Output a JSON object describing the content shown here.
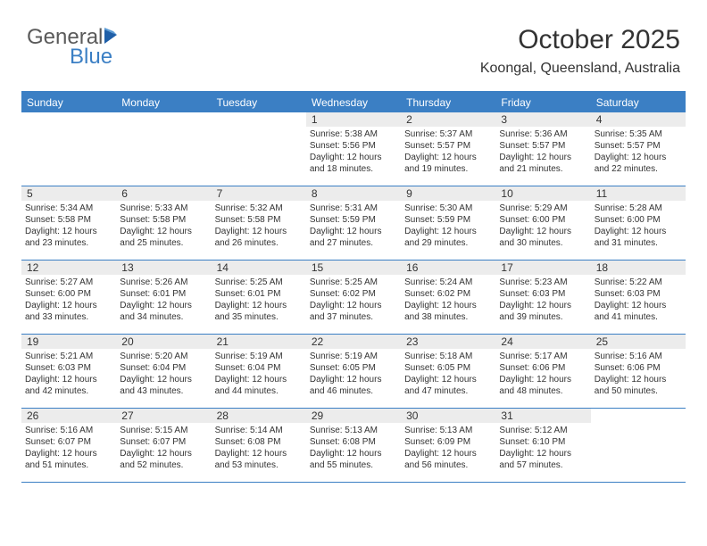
{
  "logo": {
    "textGeneral": "General",
    "textBlue": "Blue"
  },
  "title": "October 2025",
  "subtitle": "Koongal, Queensland, Australia",
  "colors": {
    "accent": "#3b7fc4",
    "dayNumberBg": "#ececec",
    "text": "#333333",
    "logoGray": "#5a5a5a",
    "background": "#ffffff"
  },
  "fontsize": {
    "title": 30,
    "subtitle": 16,
    "header": 12,
    "dayNumber": 12,
    "body": 10,
    "logo": 24
  },
  "dayHeaders": [
    "Sunday",
    "Monday",
    "Tuesday",
    "Wednesday",
    "Thursday",
    "Friday",
    "Saturday"
  ],
  "weeks": [
    [
      {
        "n": "",
        "sr": "",
        "ss": "",
        "dl": ""
      },
      {
        "n": "",
        "sr": "",
        "ss": "",
        "dl": ""
      },
      {
        "n": "",
        "sr": "",
        "ss": "",
        "dl": ""
      },
      {
        "n": "1",
        "sr": "Sunrise: 5:38 AM",
        "ss": "Sunset: 5:56 PM",
        "dl": "Daylight: 12 hours and 18 minutes."
      },
      {
        "n": "2",
        "sr": "Sunrise: 5:37 AM",
        "ss": "Sunset: 5:57 PM",
        "dl": "Daylight: 12 hours and 19 minutes."
      },
      {
        "n": "3",
        "sr": "Sunrise: 5:36 AM",
        "ss": "Sunset: 5:57 PM",
        "dl": "Daylight: 12 hours and 21 minutes."
      },
      {
        "n": "4",
        "sr": "Sunrise: 5:35 AM",
        "ss": "Sunset: 5:57 PM",
        "dl": "Daylight: 12 hours and 22 minutes."
      }
    ],
    [
      {
        "n": "5",
        "sr": "Sunrise: 5:34 AM",
        "ss": "Sunset: 5:58 PM",
        "dl": "Daylight: 12 hours and 23 minutes."
      },
      {
        "n": "6",
        "sr": "Sunrise: 5:33 AM",
        "ss": "Sunset: 5:58 PM",
        "dl": "Daylight: 12 hours and 25 minutes."
      },
      {
        "n": "7",
        "sr": "Sunrise: 5:32 AM",
        "ss": "Sunset: 5:58 PM",
        "dl": "Daylight: 12 hours and 26 minutes."
      },
      {
        "n": "8",
        "sr": "Sunrise: 5:31 AM",
        "ss": "Sunset: 5:59 PM",
        "dl": "Daylight: 12 hours and 27 minutes."
      },
      {
        "n": "9",
        "sr": "Sunrise: 5:30 AM",
        "ss": "Sunset: 5:59 PM",
        "dl": "Daylight: 12 hours and 29 minutes."
      },
      {
        "n": "10",
        "sr": "Sunrise: 5:29 AM",
        "ss": "Sunset: 6:00 PM",
        "dl": "Daylight: 12 hours and 30 minutes."
      },
      {
        "n": "11",
        "sr": "Sunrise: 5:28 AM",
        "ss": "Sunset: 6:00 PM",
        "dl": "Daylight: 12 hours and 31 minutes."
      }
    ],
    [
      {
        "n": "12",
        "sr": "Sunrise: 5:27 AM",
        "ss": "Sunset: 6:00 PM",
        "dl": "Daylight: 12 hours and 33 minutes."
      },
      {
        "n": "13",
        "sr": "Sunrise: 5:26 AM",
        "ss": "Sunset: 6:01 PM",
        "dl": "Daylight: 12 hours and 34 minutes."
      },
      {
        "n": "14",
        "sr": "Sunrise: 5:25 AM",
        "ss": "Sunset: 6:01 PM",
        "dl": "Daylight: 12 hours and 35 minutes."
      },
      {
        "n": "15",
        "sr": "Sunrise: 5:25 AM",
        "ss": "Sunset: 6:02 PM",
        "dl": "Daylight: 12 hours and 37 minutes."
      },
      {
        "n": "16",
        "sr": "Sunrise: 5:24 AM",
        "ss": "Sunset: 6:02 PM",
        "dl": "Daylight: 12 hours and 38 minutes."
      },
      {
        "n": "17",
        "sr": "Sunrise: 5:23 AM",
        "ss": "Sunset: 6:03 PM",
        "dl": "Daylight: 12 hours and 39 minutes."
      },
      {
        "n": "18",
        "sr": "Sunrise: 5:22 AM",
        "ss": "Sunset: 6:03 PM",
        "dl": "Daylight: 12 hours and 41 minutes."
      }
    ],
    [
      {
        "n": "19",
        "sr": "Sunrise: 5:21 AM",
        "ss": "Sunset: 6:03 PM",
        "dl": "Daylight: 12 hours and 42 minutes."
      },
      {
        "n": "20",
        "sr": "Sunrise: 5:20 AM",
        "ss": "Sunset: 6:04 PM",
        "dl": "Daylight: 12 hours and 43 minutes."
      },
      {
        "n": "21",
        "sr": "Sunrise: 5:19 AM",
        "ss": "Sunset: 6:04 PM",
        "dl": "Daylight: 12 hours and 44 minutes."
      },
      {
        "n": "22",
        "sr": "Sunrise: 5:19 AM",
        "ss": "Sunset: 6:05 PM",
        "dl": "Daylight: 12 hours and 46 minutes."
      },
      {
        "n": "23",
        "sr": "Sunrise: 5:18 AM",
        "ss": "Sunset: 6:05 PM",
        "dl": "Daylight: 12 hours and 47 minutes."
      },
      {
        "n": "24",
        "sr": "Sunrise: 5:17 AM",
        "ss": "Sunset: 6:06 PM",
        "dl": "Daylight: 12 hours and 48 minutes."
      },
      {
        "n": "25",
        "sr": "Sunrise: 5:16 AM",
        "ss": "Sunset: 6:06 PM",
        "dl": "Daylight: 12 hours and 50 minutes."
      }
    ],
    [
      {
        "n": "26",
        "sr": "Sunrise: 5:16 AM",
        "ss": "Sunset: 6:07 PM",
        "dl": "Daylight: 12 hours and 51 minutes."
      },
      {
        "n": "27",
        "sr": "Sunrise: 5:15 AM",
        "ss": "Sunset: 6:07 PM",
        "dl": "Daylight: 12 hours and 52 minutes."
      },
      {
        "n": "28",
        "sr": "Sunrise: 5:14 AM",
        "ss": "Sunset: 6:08 PM",
        "dl": "Daylight: 12 hours and 53 minutes."
      },
      {
        "n": "29",
        "sr": "Sunrise: 5:13 AM",
        "ss": "Sunset: 6:08 PM",
        "dl": "Daylight: 12 hours and 55 minutes."
      },
      {
        "n": "30",
        "sr": "Sunrise: 5:13 AM",
        "ss": "Sunset: 6:09 PM",
        "dl": "Daylight: 12 hours and 56 minutes."
      },
      {
        "n": "31",
        "sr": "Sunrise: 5:12 AM",
        "ss": "Sunset: 6:10 PM",
        "dl": "Daylight: 12 hours and 57 minutes."
      },
      {
        "n": "",
        "sr": "",
        "ss": "",
        "dl": ""
      }
    ]
  ]
}
